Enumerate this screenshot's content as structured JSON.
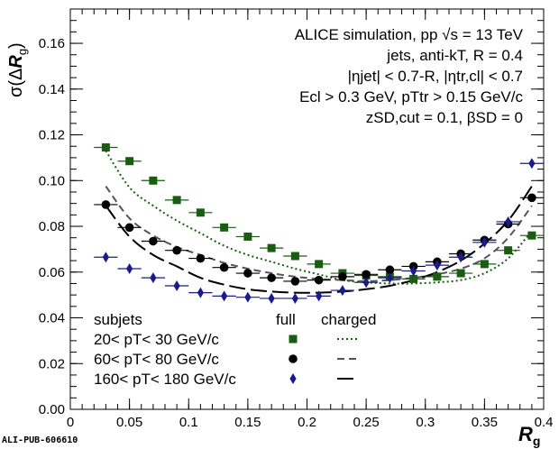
{
  "chart_data": {
    "type": "scatter",
    "title": "",
    "xlabel": "R",
    "xlabel_sub": "g",
    "ylabel_prefix": "σ(Δ",
    "ylabel_var": "R",
    "ylabel_sub": "g",
    "ylabel_suffix": ")",
    "xlim": [
      0,
      0.4
    ],
    "ylim": [
      0,
      0.175
    ],
    "xticks": [
      0,
      0.05,
      0.1,
      0.15,
      0.2,
      0.25,
      0.3,
      0.35,
      0.4
    ],
    "xtick_labels": [
      "0",
      "0.05",
      "0.1",
      "0.15",
      "0.2",
      "0.25",
      "0.3",
      "0.35",
      "0.4"
    ],
    "yticks": [
      0,
      0.02,
      0.04,
      0.06,
      0.08,
      0.1,
      0.12,
      0.14,
      0.16
    ],
    "ytick_labels": [
      "0.00",
      "0.02",
      "0.04",
      "0.06",
      "0.08",
      "0.10",
      "0.12",
      "0.14",
      "0.16"
    ],
    "x_bin_halfwidth": 0.01,
    "annotations": {
      "line1": "ALICE simulation, pp √s = 13 TeV",
      "line2": "jets, anti-kT, R = 0.4",
      "line3": "|ηjet| < 0.7-R, |ηtr,cl| < 0.7",
      "line4": "Ecl > 0.3 GeV, pTtr > 0.15 GeV/c",
      "line5": "zSD,cut = 0.1, βSD = 0"
    },
    "legend": {
      "header_subjets": "subjets",
      "header_full": "full",
      "header_charged": "charged",
      "entries": [
        "20< pT< 30 GeV/c",
        "60< pT< 80 GeV/c",
        "160< pT< 180 GeV/c"
      ]
    },
    "series": [
      {
        "name": "20< pT< 30 GeV/c full",
        "marker": "square",
        "color": "#1a5c12",
        "x": [
          0.03,
          0.05,
          0.07,
          0.09,
          0.11,
          0.13,
          0.15,
          0.17,
          0.19,
          0.21,
          0.23,
          0.25,
          0.27,
          0.29,
          0.31,
          0.33,
          0.35,
          0.37,
          0.39
        ],
        "values": [
          0.1145,
          0.1085,
          0.1,
          0.0915,
          0.086,
          0.0795,
          0.0755,
          0.0705,
          0.067,
          0.0635,
          0.0595,
          0.0585,
          0.058,
          0.057,
          0.058,
          0.0595,
          0.0635,
          0.0695,
          0.076
        ]
      },
      {
        "name": "60< pT< 80 GeV/c full",
        "marker": "circle",
        "color": "#000000",
        "x": [
          0.03,
          0.05,
          0.07,
          0.09,
          0.11,
          0.13,
          0.15,
          0.17,
          0.19,
          0.21,
          0.23,
          0.25,
          0.27,
          0.29,
          0.31,
          0.33,
          0.35,
          0.37,
          0.39
        ],
        "values": [
          0.0895,
          0.0795,
          0.0735,
          0.0695,
          0.066,
          0.062,
          0.0595,
          0.0575,
          0.056,
          0.0565,
          0.058,
          0.059,
          0.061,
          0.0625,
          0.0645,
          0.068,
          0.074,
          0.081,
          0.0925
        ]
      },
      {
        "name": "160< pT< 180 GeV/c full",
        "marker": "diamond",
        "color": "#1a1a8a",
        "x": [
          0.03,
          0.05,
          0.07,
          0.09,
          0.11,
          0.13,
          0.15,
          0.17,
          0.19,
          0.21,
          0.23,
          0.25,
          0.27,
          0.29,
          0.31,
          0.33,
          0.35,
          0.37,
          0.39
        ],
        "values": [
          0.0665,
          0.0615,
          0.0575,
          0.054,
          0.051,
          0.0495,
          0.049,
          0.0485,
          0.0485,
          0.0495,
          0.052,
          0.0555,
          0.0575,
          0.0605,
          0.063,
          0.0665,
          0.073,
          0.082,
          0.1075
        ]
      },
      {
        "name": "20< pT< 30 GeV/c charged",
        "line": "dotted",
        "color": "#1a5c12",
        "x": [
          0.03,
          0.05,
          0.07,
          0.09,
          0.11,
          0.13,
          0.15,
          0.17,
          0.19,
          0.21,
          0.23,
          0.25,
          0.27,
          0.29,
          0.31,
          0.33,
          0.35,
          0.37,
          0.39
        ],
        "values": [
          0.113,
          0.097,
          0.089,
          0.0825,
          0.077,
          0.0715,
          0.0675,
          0.0645,
          0.0615,
          0.059,
          0.0565,
          0.0555,
          0.055,
          0.055,
          0.0555,
          0.0565,
          0.0595,
          0.066,
          0.078
        ]
      },
      {
        "name": "60< pT< 80 GeV/c charged",
        "line": "dashed",
        "color": "#555555",
        "x": [
          0.03,
          0.05,
          0.07,
          0.09,
          0.11,
          0.13,
          0.15,
          0.17,
          0.19,
          0.21,
          0.23,
          0.25,
          0.27,
          0.29,
          0.31,
          0.33,
          0.35,
          0.37,
          0.39
        ],
        "values": [
          0.0975,
          0.0835,
          0.076,
          0.071,
          0.0675,
          0.064,
          0.0615,
          0.0595,
          0.058,
          0.057,
          0.0565,
          0.056,
          0.0565,
          0.0575,
          0.059,
          0.0615,
          0.066,
          0.075,
          0.089
        ]
      },
      {
        "name": "160< pT< 180 GeV/c charged",
        "line": "longdash",
        "color": "#000000",
        "x": [
          0.03,
          0.05,
          0.07,
          0.09,
          0.11,
          0.13,
          0.15,
          0.17,
          0.19,
          0.21,
          0.23,
          0.25,
          0.27,
          0.29,
          0.31,
          0.33,
          0.35,
          0.37,
          0.39
        ],
        "values": [
          0.089,
          0.0755,
          0.0675,
          0.0625,
          0.0575,
          0.0545,
          0.0525,
          0.0515,
          0.051,
          0.051,
          0.0515,
          0.0525,
          0.054,
          0.0565,
          0.06,
          0.065,
          0.0725,
          0.0825,
          0.0975
        ]
      }
    ]
  },
  "footer": {
    "pub_id": "ALI-PUB-606610"
  }
}
